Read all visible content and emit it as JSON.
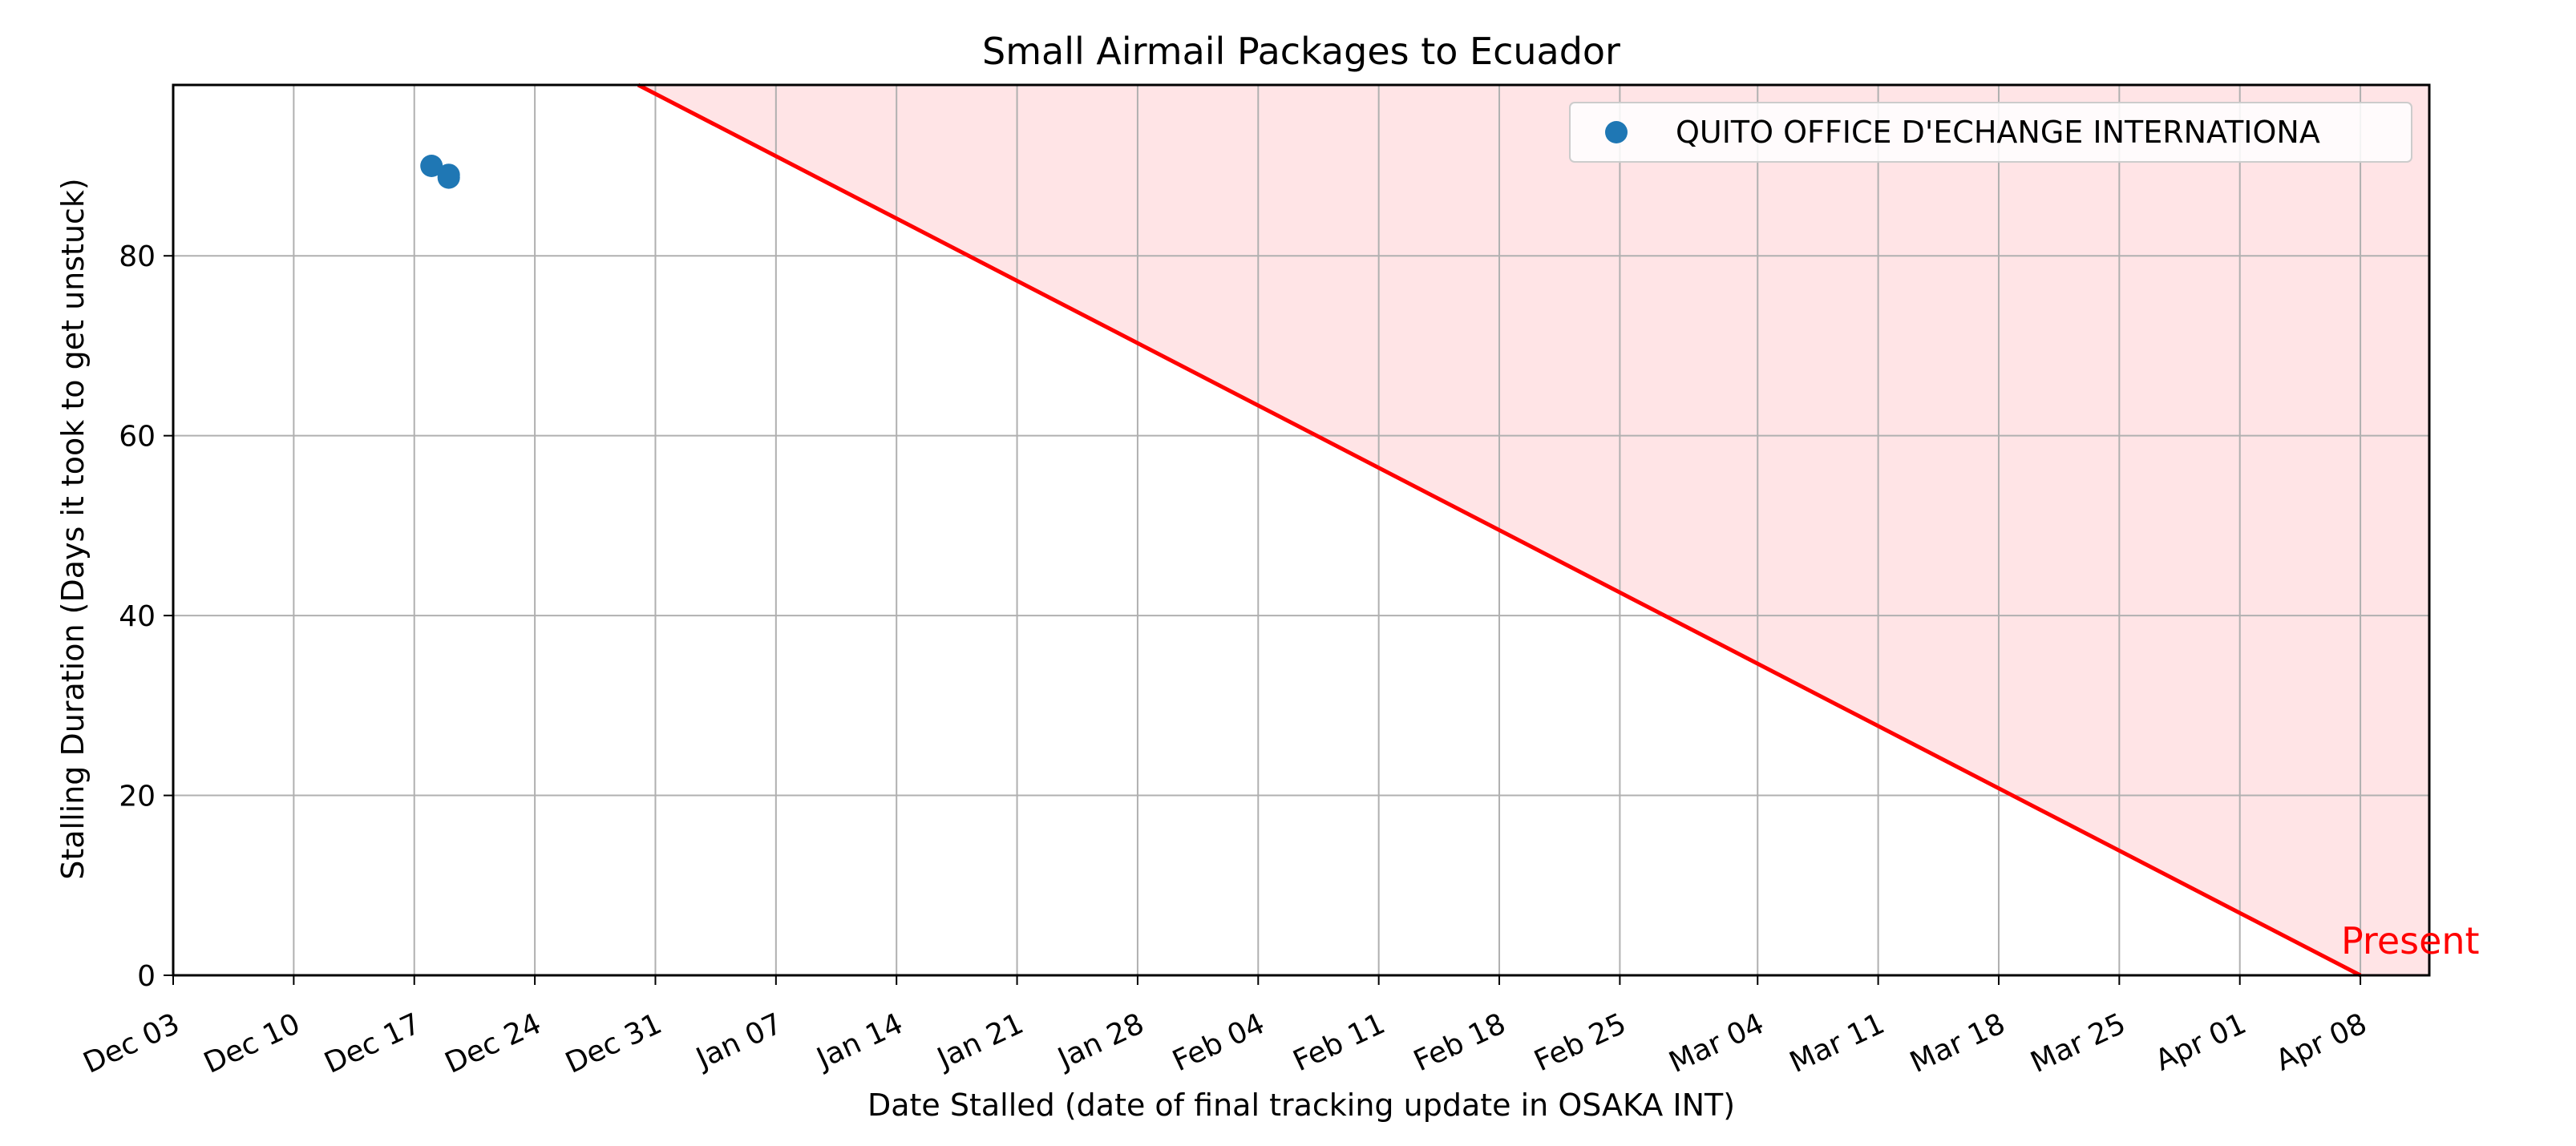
{
  "chart_data": {
    "type": "scatter",
    "title": "Small Airmail Packages to Ecuador",
    "xlabel": "Date Stalled (date of final tracking update in OSAKA INT)",
    "ylabel": "Stalling Duration (Days it took to get unstuck)",
    "x_axis_type": "date",
    "xlim": [
      "2023-12-03",
      "2024-04-12"
    ],
    "ylim": [
      0,
      99
    ],
    "x_ticks": [
      "2023-12-03",
      "2023-12-10",
      "2023-12-17",
      "2023-12-24",
      "2023-12-31",
      "2024-01-07",
      "2024-01-14",
      "2024-01-21",
      "2024-01-28",
      "2024-02-04",
      "2024-02-11",
      "2024-02-18",
      "2024-02-25",
      "2024-03-04",
      "2024-03-11",
      "2024-03-18",
      "2024-03-25",
      "2024-04-01",
      "2024-04-08"
    ],
    "x_tick_labels": [
      "Dec 03",
      "Dec 10",
      "Dec 17",
      "Dec 24",
      "Dec 31",
      "Jan 07",
      "Jan 14",
      "Jan 21",
      "Jan 28",
      "Feb 04",
      "Feb 11",
      "Feb 18",
      "Feb 25",
      "Mar 04",
      "Mar 11",
      "Mar 18",
      "Mar 25",
      "Apr 01",
      "Apr 08"
    ],
    "y_ticks": [
      0,
      20,
      40,
      60,
      80
    ],
    "grid": true,
    "legend_position": "top-right",
    "series": [
      {
        "name": "QUITO OFFICE D'ECHANGE INTERNATIONA",
        "color": "#1f77b4",
        "points": [
          {
            "x": "2023-12-18",
            "y": 90
          },
          {
            "x": "2023-12-19",
            "y": 89
          },
          {
            "x": "2023-12-19",
            "y": 88.7
          }
        ]
      }
    ],
    "reference_line": {
      "color": "#ff0000",
      "from": {
        "x": "2023-12-30",
        "y": 99
      },
      "to": {
        "x": "2024-04-08",
        "y": 0
      }
    },
    "shaded_region": {
      "color": "#ffe4e6",
      "description": "area above the red reference line"
    },
    "annotation": {
      "text": "Present",
      "color": "#ff0000",
      "x": "2024-04-08",
      "y": 0
    }
  }
}
